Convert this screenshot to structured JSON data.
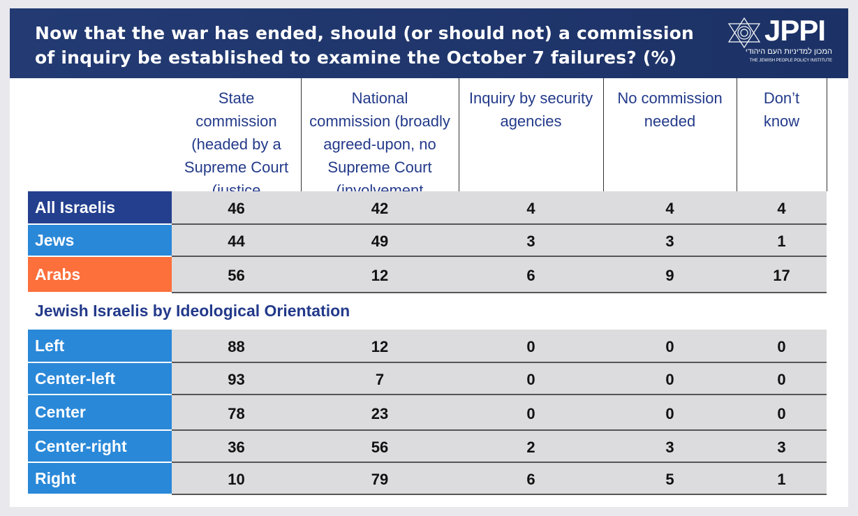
{
  "title": "Now that the war has ended, should (or should not) a commission of inquiry be  established to examine the October 7 failures? (%)",
  "logo": {
    "name": "JPPI",
    "hebrew": "המכון למדיניות העם היהודי",
    "english": "THE JEWISH PEOPLE POLICY INSTITUTE"
  },
  "columns": [
    "State commission (headed by a Supreme Court (justice",
    "National commission (broadly agreed-upon, no Supreme Court (involvement",
    "Inquiry by security agencies",
    "No commission needed",
    "Don’t know"
  ],
  "section_label": "Jewish Israelis by Ideological Orientation",
  "rows": [
    {
      "label": "All Israelis",
      "color": "#233f8e",
      "values": [
        "46",
        "42",
        "4",
        "4",
        "4"
      ]
    },
    {
      "label": "Jews",
      "color": "#2a88d8",
      "values": [
        "44",
        "49",
        "3",
        "3",
        "1"
      ]
    },
    {
      "label": "Arabs",
      "color": "#fd6f3b",
      "values": [
        "56",
        "12",
        "6",
        "9",
        "17"
      ]
    },
    {
      "label": "Left",
      "color": "#2a88d8",
      "values": [
        "88",
        "12",
        "0",
        "0",
        "0"
      ]
    },
    {
      "label": "Center-left",
      "color": "#2a88d8",
      "values": [
        "93",
        "7",
        "0",
        "0",
        "0"
      ]
    },
    {
      "label": "Center",
      "color": "#2a88d8",
      "values": [
        "78",
        "23",
        "0",
        "0",
        "0"
      ]
    },
    {
      "label": "Center-right",
      "color": "#2a88d8",
      "values": [
        "36",
        "56",
        "2",
        "3",
        "3"
      ]
    },
    {
      "label": "Right",
      "color": "#2a88d8",
      "values": [
        "10",
        "79",
        "6",
        "5",
        "1"
      ]
    }
  ]
}
